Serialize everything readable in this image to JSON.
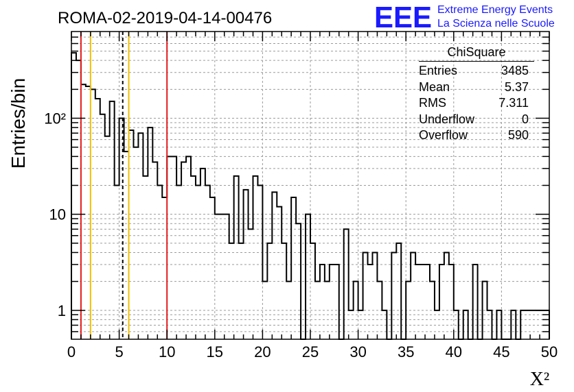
{
  "chart_data": {
    "type": "histogram",
    "title": "ROMA-02-2019-04-14-00476",
    "xlabel": "X²",
    "ylabel": "Entries/bin",
    "xlim": [
      0,
      50
    ],
    "ylim": [
      0.5,
      800
    ],
    "yscale": "log",
    "grid": true,
    "bin_width": 0.5,
    "x_ticks": [
      "0",
      "5",
      "10",
      "15",
      "20",
      "25",
      "30",
      "35",
      "40",
      "45",
      "50"
    ],
    "y_ticks": [
      "1",
      "10",
      "10²"
    ],
    "bins": [
      {
        "x0": 0.0,
        "y": 480
      },
      {
        "x0": 0.5,
        "y": 400
      },
      {
        "x0": 1.0,
        "y": 225
      },
      {
        "x0": 1.5,
        "y": 215
      },
      {
        "x0": 2.0,
        "y": 200
      },
      {
        "x0": 2.5,
        "y": 160
      },
      {
        "x0": 3.0,
        "y": 110
      },
      {
        "x0": 3.5,
        "y": 65
      },
      {
        "x0": 4.0,
        "y": 150
      },
      {
        "x0": 4.5,
        "y": 20
      },
      {
        "x0": 5.0,
        "y": 100
      },
      {
        "x0": 5.5,
        "y": 45
      },
      {
        "x0": 6.0,
        "y": 75
      },
      {
        "x0": 6.5,
        "y": 50
      },
      {
        "x0": 7.0,
        "y": 70
      },
      {
        "x0": 7.5,
        "y": 25
      },
      {
        "x0": 8.0,
        "y": 80
      },
      {
        "x0": 8.5,
        "y": 35
      },
      {
        "x0": 9.0,
        "y": 20
      },
      {
        "x0": 9.5,
        "y": 15
      },
      {
        "x0": 10.0,
        "y": 40
      },
      {
        "x0": 10.5,
        "y": 40
      },
      {
        "x0": 11.0,
        "y": 20
      },
      {
        "x0": 11.5,
        "y": 35
      },
      {
        "x0": 12.0,
        "y": 40
      },
      {
        "x0": 12.5,
        "y": 25
      },
      {
        "x0": 13.0,
        "y": 20
      },
      {
        "x0": 13.5,
        "y": 30
      },
      {
        "x0": 14.0,
        "y": 20
      },
      {
        "x0": 14.5,
        "y": 15
      },
      {
        "x0": 15.0,
        "y": 10
      },
      {
        "x0": 15.5,
        "y": 10
      },
      {
        "x0": 16.0,
        "y": 10
      },
      {
        "x0": 16.5,
        "y": 5
      },
      {
        "x0": 17.0,
        "y": 25
      },
      {
        "x0": 17.5,
        "y": 5
      },
      {
        "x0": 18.0,
        "y": 18
      },
      {
        "x0": 18.5,
        "y": 7
      },
      {
        "x0": 19.0,
        "y": 25
      },
      {
        "x0": 19.5,
        "y": 20
      },
      {
        "x0": 20.0,
        "y": 2
      },
      {
        "x0": 20.5,
        "y": 5
      },
      {
        "x0": 21.0,
        "y": 17
      },
      {
        "x0": 21.5,
        "y": 12
      },
      {
        "x0": 22.0,
        "y": 5
      },
      {
        "x0": 22.5,
        "y": 2
      },
      {
        "x0": 23.0,
        "y": 15
      },
      {
        "x0": 23.5,
        "y": 8
      },
      {
        "x0": 24.0,
        "y": 0
      },
      {
        "x0": 24.5,
        "y": 10
      },
      {
        "x0": 25.0,
        "y": 5
      },
      {
        "x0": 25.5,
        "y": 2
      },
      {
        "x0": 26.0,
        "y": 3
      },
      {
        "x0": 26.5,
        "y": 2
      },
      {
        "x0": 27.0,
        "y": 3
      },
      {
        "x0": 27.5,
        "y": 3
      },
      {
        "x0": 28.0,
        "y": 0
      },
      {
        "x0": 28.5,
        "y": 7
      },
      {
        "x0": 29.0,
        "y": 1
      },
      {
        "x0": 29.5,
        "y": 2
      },
      {
        "x0": 30.0,
        "y": 1
      },
      {
        "x0": 30.5,
        "y": 4
      },
      {
        "x0": 31.0,
        "y": 3
      },
      {
        "x0": 31.5,
        "y": 4
      },
      {
        "x0": 32.0,
        "y": 2
      },
      {
        "x0": 32.5,
        "y": 1
      },
      {
        "x0": 33.0,
        "y": 0
      },
      {
        "x0": 33.5,
        "y": 4
      },
      {
        "x0": 34.0,
        "y": 5
      },
      {
        "x0": 34.5,
        "y": 0
      },
      {
        "x0": 35.0,
        "y": 2
      },
      {
        "x0": 35.5,
        "y": 4
      },
      {
        "x0": 36.0,
        "y": 3
      },
      {
        "x0": 36.5,
        "y": 3
      },
      {
        "x0": 37.0,
        "y": 3
      },
      {
        "x0": 37.5,
        "y": 2
      },
      {
        "x0": 38.0,
        "y": 1
      },
      {
        "x0": 38.5,
        "y": 3
      },
      {
        "x0": 39.0,
        "y": 4
      },
      {
        "x0": 39.5,
        "y": 3
      },
      {
        "x0": 40.0,
        "y": 1
      },
      {
        "x0": 40.5,
        "y": 0
      },
      {
        "x0": 41.0,
        "y": 1
      },
      {
        "x0": 41.5,
        "y": 0
      },
      {
        "x0": 42.0,
        "y": 3
      },
      {
        "x0": 42.5,
        "y": 0
      },
      {
        "x0": 43.0,
        "y": 2
      },
      {
        "x0": 43.5,
        "y": 1
      },
      {
        "x0": 44.0,
        "y": 0
      },
      {
        "x0": 44.5,
        "y": 1
      },
      {
        "x0": 45.0,
        "y": 0
      },
      {
        "x0": 45.5,
        "y": 0
      },
      {
        "x0": 46.0,
        "y": 1
      },
      {
        "x0": 46.5,
        "y": 0
      },
      {
        "x0": 47.0,
        "y": 1
      },
      {
        "x0": 47.5,
        "y": 1
      },
      {
        "x0": 48.0,
        "y": 1
      },
      {
        "x0": 48.5,
        "y": 1
      },
      {
        "x0": 49.0,
        "y": 1
      },
      {
        "x0": 49.5,
        "y": 1
      }
    ],
    "vertical_lines": [
      {
        "x": 1.0,
        "color": "#e41a1c",
        "style": "solid"
      },
      {
        "x": 2.0,
        "color": "#f0c000",
        "style": "solid"
      },
      {
        "x": 5.37,
        "color": "#000000",
        "style": "dashed"
      },
      {
        "x": 6.0,
        "color": "#f0c000",
        "style": "solid"
      },
      {
        "x": 10.0,
        "color": "#e41a1c",
        "style": "solid"
      }
    ],
    "stats": {
      "title": "ChiSquare",
      "rows": [
        {
          "label": "Entries",
          "value": "3485"
        },
        {
          "label": "Mean",
          "value": "5.37"
        },
        {
          "label": "RMS",
          "value": "7.311"
        },
        {
          "label": "Underflow",
          "value": "0"
        },
        {
          "label": "Overflow",
          "value": "590"
        }
      ]
    }
  },
  "logo": {
    "mark": "EEE",
    "line1": "Extreme Energy Events",
    "line2": "La Scienza nelle Scuole",
    "color": "#1a1aff"
  }
}
